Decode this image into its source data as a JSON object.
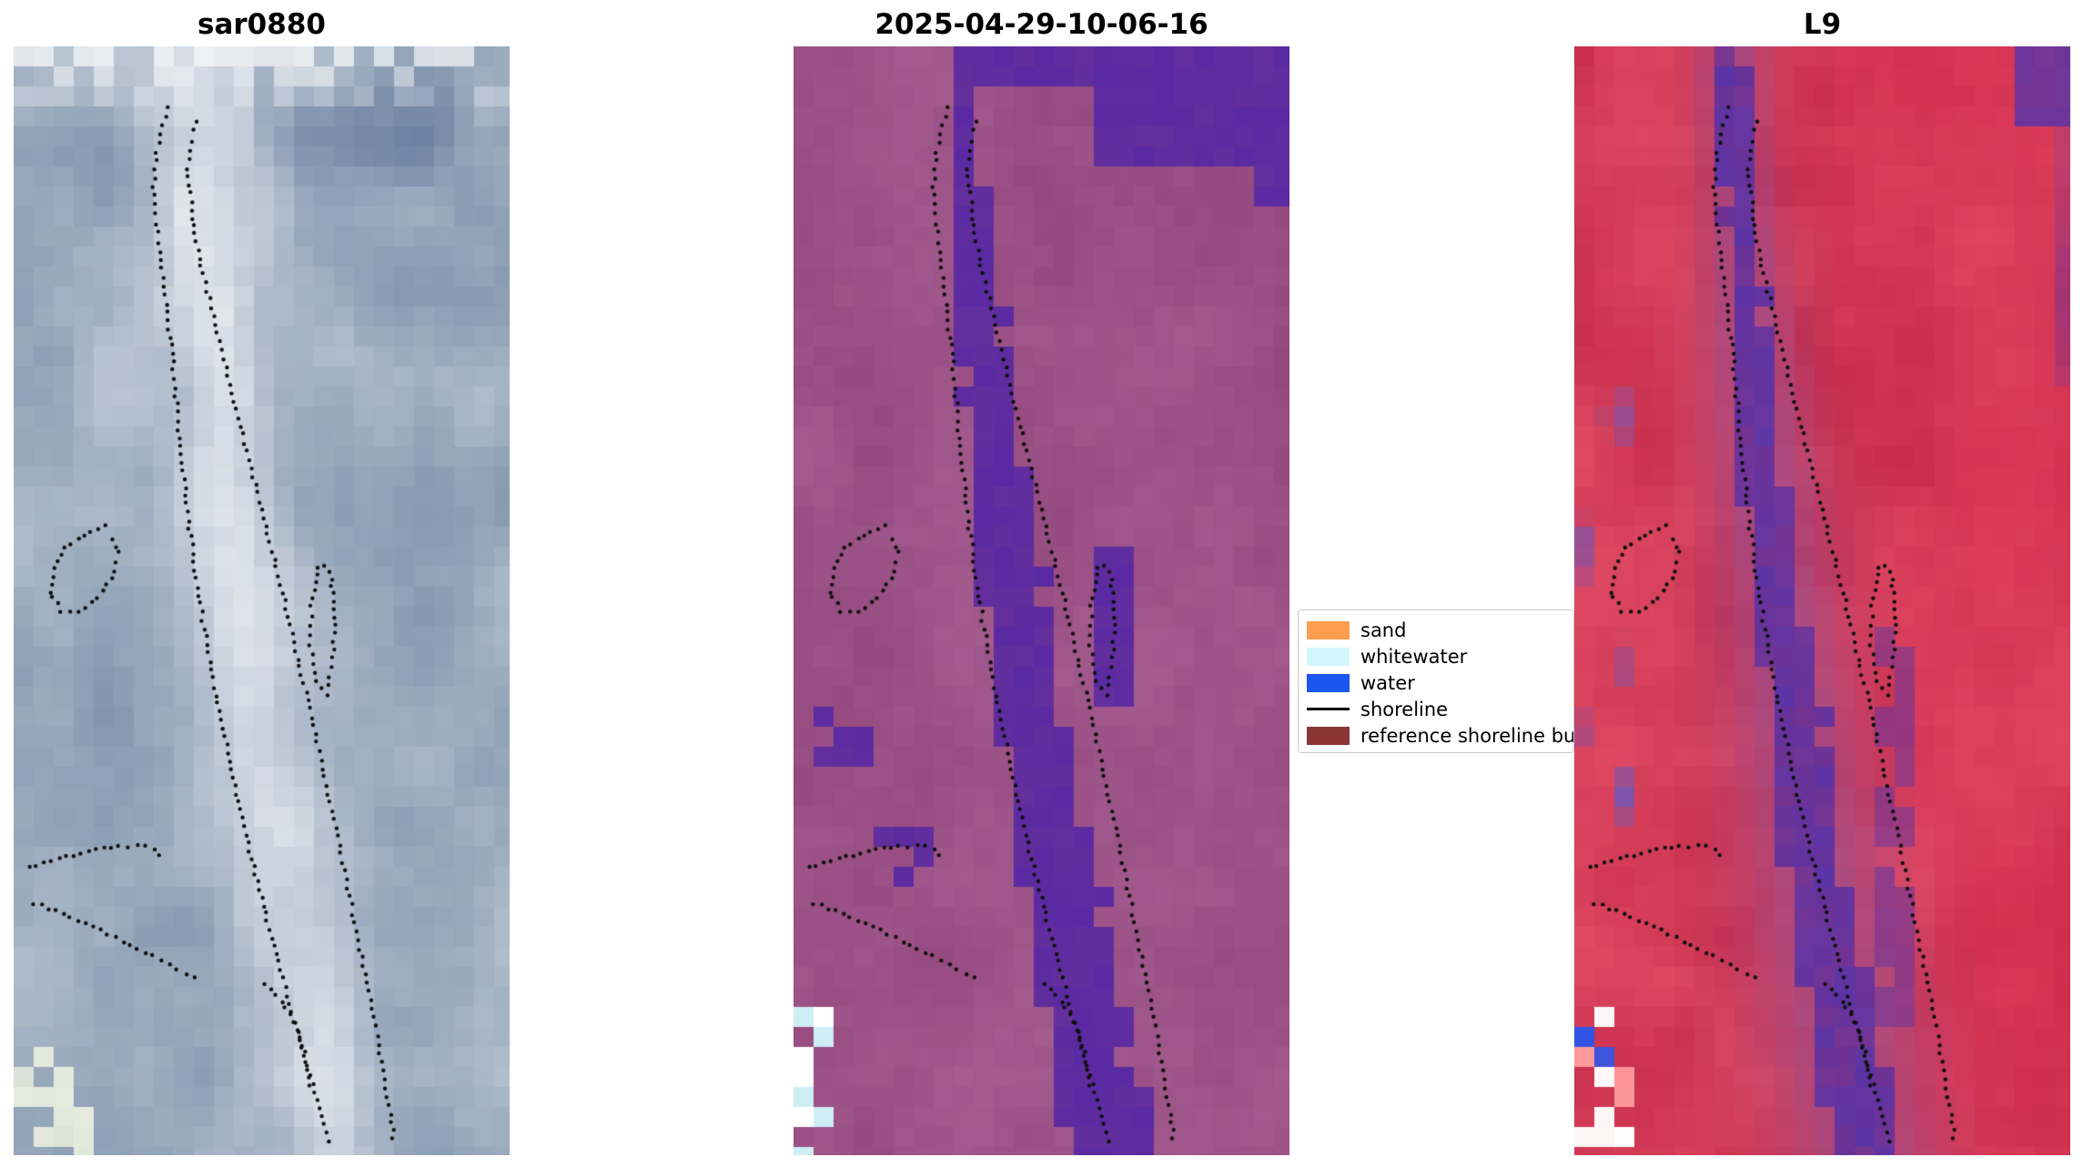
{
  "figure": {
    "background": "#ffffff",
    "panels": [
      {
        "title": "sar0880",
        "type": "sar"
      },
      {
        "title": "2025-04-29-10-06-16",
        "type": "classified"
      },
      {
        "title": "L9",
        "type": "l9"
      }
    ],
    "legend": {
      "entries": [
        {
          "label": "sand",
          "swatch": "#fb9e4f",
          "kind": "patch"
        },
        {
          "label": "whitewater",
          "swatch": "#d2f6fd",
          "kind": "patch"
        },
        {
          "label": "water",
          "swatch": "#1a56ee",
          "kind": "patch"
        },
        {
          "label": "shoreline",
          "swatch": "#000000",
          "kind": "line"
        },
        {
          "label": "reference shoreline bu",
          "swatch": "#8c3537",
          "kind": "patch"
        }
      ]
    }
  },
  "palettes": {
    "sar": {
      "dark": "#7b90a9",
      "light": "#bfcad6",
      "bright": "#f0f3f6",
      "deep": "#63799c",
      "glow": "#f6f8e4",
      "white": "#ffffff"
    },
    "classified": {
      "base1": "#92477c",
      "base2": "#a75f92",
      "channel": "#5a2aa4",
      "cyan": "#cdeef5",
      "white": "#ffffff"
    },
    "l9": {
      "base1": "#c22948",
      "base2": "#e44e66",
      "hot": "#e83453",
      "channel": "#5a35a8",
      "trans": "#9a4f8f",
      "blotch": "#7a55ad",
      "blue": "#2f55e8",
      "orange": "#ff8050",
      "pink": "#ff9b9b",
      "white": "#ffffff"
    },
    "shoreline_dot_color": "#101010"
  },
  "shorelines": [
    [
      [
        0.31,
        0.055
      ],
      [
        0.288,
        0.095
      ],
      [
        0.282,
        0.135
      ],
      [
        0.296,
        0.185
      ],
      [
        0.31,
        0.24
      ],
      [
        0.324,
        0.3
      ],
      [
        0.336,
        0.36
      ],
      [
        0.35,
        0.42
      ],
      [
        0.368,
        0.48
      ],
      [
        0.39,
        0.54
      ],
      [
        0.415,
        0.6
      ],
      [
        0.443,
        0.66
      ],
      [
        0.472,
        0.718
      ],
      [
        0.503,
        0.775
      ],
      [
        0.537,
        0.832
      ],
      [
        0.572,
        0.888
      ],
      [
        0.608,
        0.943
      ],
      [
        0.64,
        0.995
      ]
    ],
    [
      [
        0.368,
        0.068
      ],
      [
        0.352,
        0.11
      ],
      [
        0.36,
        0.155
      ],
      [
        0.382,
        0.205
      ],
      [
        0.41,
        0.258
      ],
      [
        0.44,
        0.312
      ],
      [
        0.47,
        0.365
      ],
      [
        0.5,
        0.418
      ],
      [
        0.53,
        0.47
      ],
      [
        0.558,
        0.522
      ],
      [
        0.585,
        0.575
      ],
      [
        0.612,
        0.628
      ],
      [
        0.638,
        0.682
      ],
      [
        0.663,
        0.736
      ],
      [
        0.688,
        0.79
      ],
      [
        0.712,
        0.845
      ],
      [
        0.736,
        0.9
      ],
      [
        0.758,
        0.955
      ],
      [
        0.768,
        0.992
      ]
    ],
    [
      [
        0.185,
        0.432
      ],
      [
        0.142,
        0.44
      ],
      [
        0.105,
        0.452
      ],
      [
        0.08,
        0.47
      ],
      [
        0.072,
        0.492
      ],
      [
        0.094,
        0.509
      ],
      [
        0.132,
        0.509
      ],
      [
        0.17,
        0.498
      ],
      [
        0.198,
        0.48
      ],
      [
        0.21,
        0.457
      ],
      [
        0.196,
        0.438
      ]
    ],
    [
      [
        0.03,
        0.74
      ],
      [
        0.09,
        0.733
      ],
      [
        0.15,
        0.726
      ],
      [
        0.21,
        0.721
      ],
      [
        0.268,
        0.722
      ],
      [
        0.31,
        0.733
      ]
    ],
    [
      [
        0.042,
        0.773
      ],
      [
        0.1,
        0.782
      ],
      [
        0.16,
        0.794
      ],
      [
        0.22,
        0.807
      ],
      [
        0.278,
        0.82
      ],
      [
        0.33,
        0.833
      ],
      [
        0.378,
        0.845
      ]
    ],
    [
      [
        0.612,
        0.47
      ],
      [
        0.6,
        0.505
      ],
      [
        0.598,
        0.54
      ],
      [
        0.61,
        0.572
      ],
      [
        0.632,
        0.585
      ],
      [
        0.645,
        0.552
      ],
      [
        0.648,
        0.515
      ],
      [
        0.64,
        0.48
      ],
      [
        0.622,
        0.462
      ]
    ],
    [
      [
        0.505,
        0.845
      ],
      [
        0.54,
        0.862
      ],
      [
        0.572,
        0.886
      ],
      [
        0.59,
        0.915
      ],
      [
        0.6,
        0.945
      ]
    ]
  ],
  "chart_data": {
    "type": "heatmap",
    "title": "",
    "panel_titles": [
      "sar0880",
      "2025-04-29-10-06-16",
      "L9"
    ],
    "legend_entries": [
      "sand",
      "whitewater",
      "water",
      "shoreline",
      "reference shoreline bu"
    ],
    "legend_position": "between second and third panel, middle-right of figure",
    "axes": "none (image panels, no ticks or axis labels)",
    "notes": "Three co-registered pixelated satellite image tiles with an identical black dotted shoreline overlay: SAR tile (blue-gray with bright diagonal sand bar), classified optical tile (magenta land, dark purple water channel, cyan whitewater in lower-left corner), and L9 false-color tile (red land, purple water channel, blue/white/orange pixels in lower-left corner)."
  }
}
